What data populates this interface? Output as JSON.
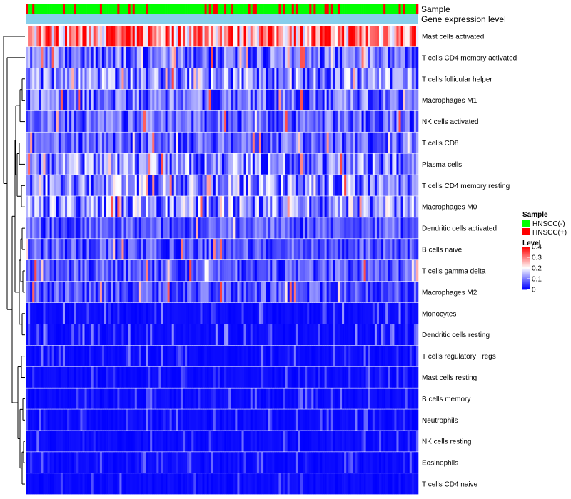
{
  "chart_data": {
    "type": "heatmap",
    "title": "",
    "annotations": [
      {
        "name": "Sample",
        "values_summary": "mixed HNSCC(-) / HNSCC(+) per column"
      },
      {
        "name": "Gene expression level",
        "color": "#87ceeb"
      }
    ],
    "rows": [
      {
        "label": "Mast cells activated",
        "mean": 0.3
      },
      {
        "label": "T cells CD4 memory activated",
        "mean": 0.09
      },
      {
        "label": "T cells follicular helper",
        "mean": 0.11
      },
      {
        "label": "Macrophages M1",
        "mean": 0.09
      },
      {
        "label": "NK cells activated",
        "mean": 0.08
      },
      {
        "label": "T cells CD8",
        "mean": 0.08
      },
      {
        "label": "Plasma cells",
        "mean": 0.11
      },
      {
        "label": "T cells CD4 memory resting",
        "mean": 0.12
      },
      {
        "label": "Macrophages M0",
        "mean": 0.12
      },
      {
        "label": "Dendritic cells activated",
        "mean": 0.07
      },
      {
        "label": "B cells naive",
        "mean": 0.07
      },
      {
        "label": "T cells gamma delta",
        "mean": 0.07
      },
      {
        "label": "Macrophages M2",
        "mean": 0.07
      },
      {
        "label": "Monocytes",
        "mean": 0.04
      },
      {
        "label": "Dendritic cells resting",
        "mean": 0.04
      },
      {
        "label": "T cells regulatory  Tregs",
        "mean": 0.03
      },
      {
        "label": "Mast cells resting",
        "mean": 0.01
      },
      {
        "label": "B cells memory",
        "mean": 0.015
      },
      {
        "label": "Neutrophils",
        "mean": 0.015
      },
      {
        "label": "NK cells resting",
        "mean": 0.01
      },
      {
        "label": "Eosinophils",
        "mean": 0.01
      },
      {
        "label": "T cells CD4 naive",
        "mean": 0.01
      }
    ],
    "n_columns": 180,
    "legend": {
      "sample": {
        "title": "Sample",
        "entries": [
          {
            "label": "HNSCC(-)",
            "color": "#00ff00"
          },
          {
            "label": "HNSCC(+)",
            "color": "#ff0000"
          }
        ]
      },
      "level": {
        "title": "Level",
        "ticks": [
          "0.4",
          "0.3",
          "0.2",
          "0.1",
          "0"
        ],
        "tick_values": [
          0.4,
          0.3,
          0.2,
          0.1,
          0
        ],
        "range": [
          0,
          0.4
        ],
        "colors": {
          "low": "#0000ff",
          "mid": "#ffffff",
          "high": "#ff0000"
        }
      }
    }
  }
}
